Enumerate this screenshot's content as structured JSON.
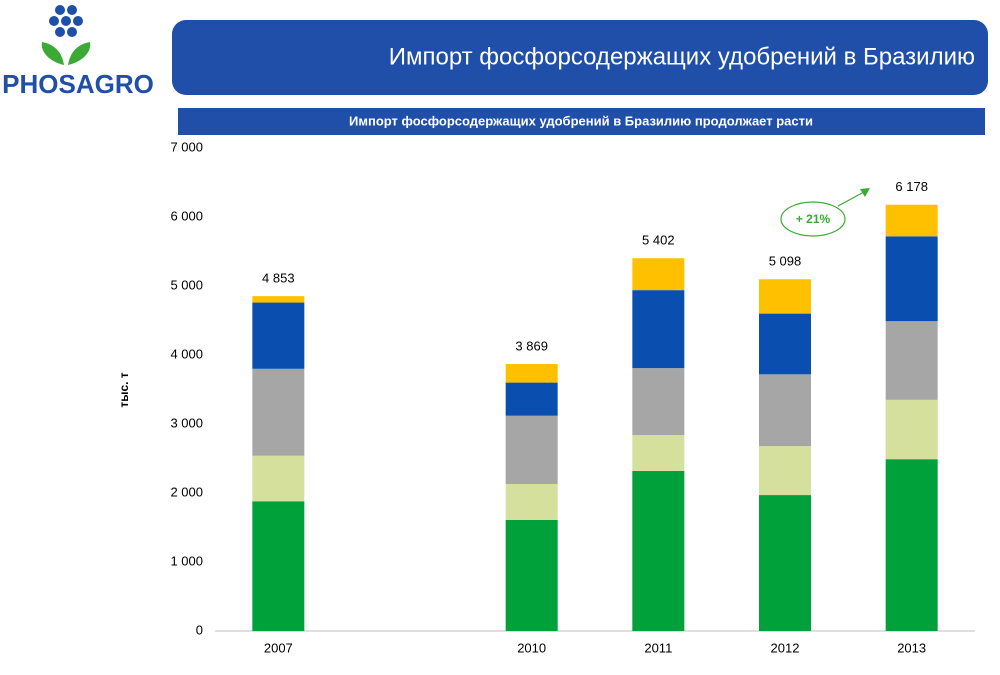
{
  "logo": "PHOSAGRO",
  "chart_data": {
    "type": "stacked-bar",
    "title": "Импорт фосфорсодержащих удобрений в Бразилию",
    "subtitle": "Импорт фосфорсодержащих удобрений  в Бразилию продолжает расти",
    "y_label": "тыс. т",
    "categories": [
      "2007",
      null,
      "2010",
      "2011",
      "2012",
      "2013"
    ],
    "series": [
      {
        "color": "#00a03a",
        "values": [
          1880,
          null,
          1610,
          2320,
          1970,
          2490
        ]
      },
      {
        "color": "#d4e09b",
        "values": [
          660,
          null,
          520,
          520,
          710,
          860
        ]
      },
      {
        "color": "#a6a6a6",
        "values": [
          1260,
          null,
          990,
          970,
          1040,
          1140
        ]
      },
      {
        "color": "#0a4faf",
        "values": [
          960,
          null,
          480,
          1130,
          880,
          1230
        ]
      },
      {
        "color": "#ffc000",
        "values": [
          93,
          null,
          269,
          462,
          498,
          458
        ]
      }
    ],
    "totals": [
      4853,
      null,
      3869,
      5402,
      5098,
      6178
    ],
    "total_labels": [
      "4 853",
      null,
      "3 869",
      "5 402",
      "5 098",
      "6 178"
    ],
    "annotation": "+ 21%",
    "ylim": [
      0,
      7000
    ],
    "yticks": [
      0,
      {
        "value": 1000,
        "label": "1 000"
      },
      {
        "value": 2000,
        "label": "2 000"
      },
      {
        "value": 3000,
        "label": "3 000"
      },
      {
        "value": 4000,
        "label": "4 000"
      },
      {
        "value": 5000,
        "label": "5 000"
      },
      {
        "value": 6000,
        "label": "6 000"
      },
      {
        "value": 7000,
        "label": "7 000"
      }
    ]
  }
}
